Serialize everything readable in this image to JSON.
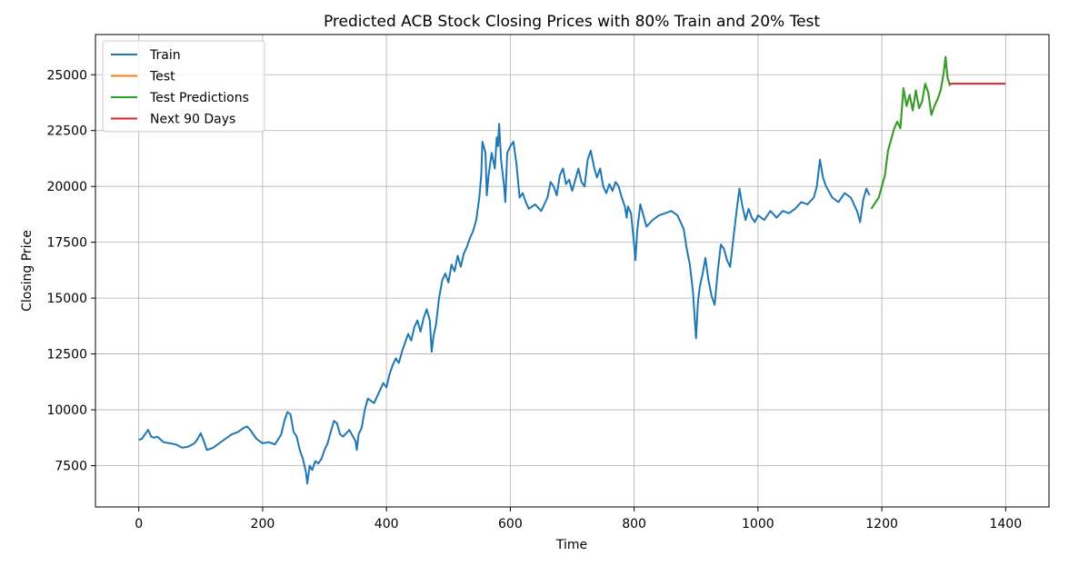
{
  "chart_data": {
    "type": "line",
    "title": "Predicted ACB Stock Closing Prices with 80% Train and 20% Test",
    "xlabel": "Time",
    "ylabel": "Closing Price",
    "xlim": [
      -70,
      1470
    ],
    "ylim": [
      5650,
      26800
    ],
    "x_ticks": [
      0,
      200,
      400,
      600,
      800,
      1000,
      1200,
      1400
    ],
    "y_ticks": [
      7500,
      10000,
      12500,
      15000,
      17500,
      20000,
      22500,
      25000
    ],
    "grid": true,
    "legend_position": "top-left",
    "series": [
      {
        "name": "Train",
        "color": "#1f77b4",
        "points": [
          [
            0,
            8650
          ],
          [
            5,
            8700
          ],
          [
            10,
            8900
          ],
          [
            15,
            9100
          ],
          [
            20,
            8800
          ],
          [
            25,
            8750
          ],
          [
            30,
            8800
          ],
          [
            40,
            8550
          ],
          [
            50,
            8500
          ],
          [
            60,
            8450
          ],
          [
            70,
            8300
          ],
          [
            80,
            8350
          ],
          [
            90,
            8500
          ],
          [
            95,
            8700
          ],
          [
            100,
            8950
          ],
          [
            105,
            8600
          ],
          [
            110,
            8200
          ],
          [
            120,
            8300
          ],
          [
            130,
            8500
          ],
          [
            140,
            8700
          ],
          [
            150,
            8900
          ],
          [
            160,
            9000
          ],
          [
            170,
            9200
          ],
          [
            175,
            9250
          ],
          [
            180,
            9100
          ],
          [
            190,
            8700
          ],
          [
            200,
            8500
          ],
          [
            210,
            8550
          ],
          [
            220,
            8450
          ],
          [
            230,
            8900
          ],
          [
            235,
            9500
          ],
          [
            240,
            9900
          ],
          [
            245,
            9800
          ],
          [
            250,
            9000
          ],
          [
            255,
            8800
          ],
          [
            260,
            8200
          ],
          [
            265,
            7800
          ],
          [
            270,
            7200
          ],
          [
            272,
            6700
          ],
          [
            276,
            7500
          ],
          [
            280,
            7300
          ],
          [
            285,
            7700
          ],
          [
            290,
            7600
          ],
          [
            295,
            7800
          ],
          [
            300,
            8200
          ],
          [
            305,
            8500
          ],
          [
            310,
            9000
          ],
          [
            315,
            9500
          ],
          [
            320,
            9400
          ],
          [
            325,
            8900
          ],
          [
            330,
            8800
          ],
          [
            340,
            9100
          ],
          [
            350,
            8600
          ],
          [
            352,
            8200
          ],
          [
            355,
            8900
          ],
          [
            360,
            9200
          ],
          [
            365,
            10000
          ],
          [
            370,
            10500
          ],
          [
            380,
            10300
          ],
          [
            385,
            10600
          ],
          [
            390,
            10900
          ],
          [
            395,
            11200
          ],
          [
            400,
            11000
          ],
          [
            405,
            11600
          ],
          [
            410,
            12000
          ],
          [
            415,
            12300
          ],
          [
            420,
            12100
          ],
          [
            425,
            12600
          ],
          [
            430,
            13000
          ],
          [
            435,
            13400
          ],
          [
            440,
            13100
          ],
          [
            445,
            13700
          ],
          [
            450,
            14000
          ],
          [
            455,
            13500
          ],
          [
            460,
            14100
          ],
          [
            465,
            14500
          ],
          [
            470,
            14000
          ],
          [
            473,
            12600
          ],
          [
            476,
            13300
          ],
          [
            480,
            13800
          ],
          [
            485,
            15000
          ],
          [
            490,
            15800
          ],
          [
            495,
            16100
          ],
          [
            500,
            15700
          ],
          [
            505,
            16500
          ],
          [
            510,
            16200
          ],
          [
            515,
            16900
          ],
          [
            520,
            16400
          ],
          [
            525,
            17000
          ],
          [
            530,
            17300
          ],
          [
            535,
            17700
          ],
          [
            540,
            18000
          ],
          [
            545,
            18500
          ],
          [
            550,
            19500
          ],
          [
            553,
            20500
          ],
          [
            555,
            22000
          ],
          [
            560,
            21500
          ],
          [
            562,
            19600
          ],
          [
            565,
            20500
          ],
          [
            570,
            21500
          ],
          [
            575,
            20800
          ],
          [
            578,
            22200
          ],
          [
            580,
            21800
          ],
          [
            582,
            22800
          ],
          [
            585,
            21200
          ],
          [
            590,
            20000
          ],
          [
            592,
            19300
          ],
          [
            595,
            21500
          ],
          [
            600,
            21800
          ],
          [
            605,
            22000
          ],
          [
            610,
            21000
          ],
          [
            615,
            19500
          ],
          [
            620,
            19700
          ],
          [
            625,
            19300
          ],
          [
            630,
            19000
          ],
          [
            640,
            19200
          ],
          [
            650,
            18900
          ],
          [
            660,
            19500
          ],
          [
            665,
            20200
          ],
          [
            670,
            20000
          ],
          [
            675,
            19600
          ],
          [
            680,
            20500
          ],
          [
            685,
            20800
          ],
          [
            690,
            20100
          ],
          [
            695,
            20300
          ],
          [
            700,
            19800
          ],
          [
            705,
            20300
          ],
          [
            710,
            20800
          ],
          [
            715,
            20200
          ],
          [
            720,
            20000
          ],
          [
            725,
            21200
          ],
          [
            730,
            21600
          ],
          [
            735,
            20900
          ],
          [
            740,
            20400
          ],
          [
            745,
            20800
          ],
          [
            750,
            20000
          ],
          [
            755,
            19700
          ],
          [
            760,
            20100
          ],
          [
            765,
            19800
          ],
          [
            770,
            20200
          ],
          [
            775,
            20000
          ],
          [
            780,
            19500
          ],
          [
            785,
            19100
          ],
          [
            788,
            18600
          ],
          [
            790,
            19100
          ],
          [
            795,
            18800
          ],
          [
            800,
            17400
          ],
          [
            802,
            16700
          ],
          [
            805,
            18000
          ],
          [
            810,
            19200
          ],
          [
            815,
            18700
          ],
          [
            820,
            18200
          ],
          [
            830,
            18500
          ],
          [
            840,
            18700
          ],
          [
            850,
            18800
          ],
          [
            860,
            18900
          ],
          [
            870,
            18700
          ],
          [
            880,
            18100
          ],
          [
            885,
            17200
          ],
          [
            890,
            16500
          ],
          [
            895,
            15300
          ],
          [
            900,
            13200
          ],
          [
            903,
            14800
          ],
          [
            906,
            15500
          ],
          [
            910,
            16000
          ],
          [
            915,
            16800
          ],
          [
            920,
            15800
          ],
          [
            925,
            15100
          ],
          [
            930,
            14700
          ],
          [
            935,
            16200
          ],
          [
            940,
            17400
          ],
          [
            945,
            17200
          ],
          [
            950,
            16700
          ],
          [
            955,
            16400
          ],
          [
            960,
            17600
          ],
          [
            965,
            18800
          ],
          [
            970,
            19900
          ],
          [
            975,
            19100
          ],
          [
            980,
            18500
          ],
          [
            985,
            19000
          ],
          [
            990,
            18600
          ],
          [
            995,
            18400
          ],
          [
            1000,
            18700
          ],
          [
            1010,
            18500
          ],
          [
            1020,
            18900
          ],
          [
            1030,
            18600
          ],
          [
            1040,
            18900
          ],
          [
            1050,
            18800
          ],
          [
            1060,
            19000
          ],
          [
            1070,
            19300
          ],
          [
            1080,
            19200
          ],
          [
            1090,
            19500
          ],
          [
            1095,
            20000
          ],
          [
            1100,
            21200
          ],
          [
            1105,
            20400
          ],
          [
            1110,
            20000
          ],
          [
            1120,
            19500
          ],
          [
            1130,
            19300
          ],
          [
            1140,
            19700
          ],
          [
            1150,
            19500
          ],
          [
            1160,
            18900
          ],
          [
            1165,
            18400
          ],
          [
            1170,
            19400
          ],
          [
            1175,
            19900
          ],
          [
            1180,
            19600
          ]
        ]
      },
      {
        "name": "Test",
        "color": "#ff7f0e",
        "points": [
          [
            1183,
            19000
          ],
          [
            1190,
            19300
          ],
          [
            1195,
            19500
          ],
          [
            1200,
            20000
          ],
          [
            1205,
            20500
          ],
          [
            1210,
            21600
          ],
          [
            1215,
            22100
          ],
          [
            1220,
            22600
          ],
          [
            1225,
            22900
          ],
          [
            1230,
            22600
          ],
          [
            1235,
            24400
          ],
          [
            1240,
            23600
          ],
          [
            1245,
            24100
          ],
          [
            1250,
            23400
          ],
          [
            1255,
            24300
          ],
          [
            1260,
            23500
          ],
          [
            1265,
            23800
          ],
          [
            1270,
            24600
          ],
          [
            1275,
            24200
          ],
          [
            1280,
            23200
          ],
          [
            1285,
            23600
          ],
          [
            1290,
            23900
          ],
          [
            1295,
            24300
          ],
          [
            1300,
            25100
          ],
          [
            1303,
            25800
          ],
          [
            1306,
            24900
          ],
          [
            1310,
            24500
          ]
        ]
      },
      {
        "name": "Test Predictions",
        "color": "#2ca02c",
        "points": [
          [
            1183,
            19000
          ],
          [
            1190,
            19300
          ],
          [
            1195,
            19500
          ],
          [
            1200,
            20000
          ],
          [
            1205,
            20500
          ],
          [
            1210,
            21600
          ],
          [
            1215,
            22100
          ],
          [
            1220,
            22600
          ],
          [
            1225,
            22900
          ],
          [
            1230,
            22600
          ],
          [
            1235,
            24400
          ],
          [
            1240,
            23600
          ],
          [
            1245,
            24100
          ],
          [
            1250,
            23400
          ],
          [
            1255,
            24300
          ],
          [
            1260,
            23500
          ],
          [
            1265,
            23800
          ],
          [
            1270,
            24600
          ],
          [
            1275,
            24200
          ],
          [
            1280,
            23200
          ],
          [
            1285,
            23600
          ],
          [
            1290,
            23900
          ],
          [
            1295,
            24300
          ],
          [
            1300,
            25100
          ],
          [
            1303,
            25800
          ],
          [
            1306,
            24900
          ],
          [
            1310,
            24500
          ]
        ]
      },
      {
        "name": "Next 90 Days",
        "color": "#d62728",
        "points": [
          [
            1310,
            24600
          ],
          [
            1400,
            24600
          ]
        ]
      }
    ]
  }
}
